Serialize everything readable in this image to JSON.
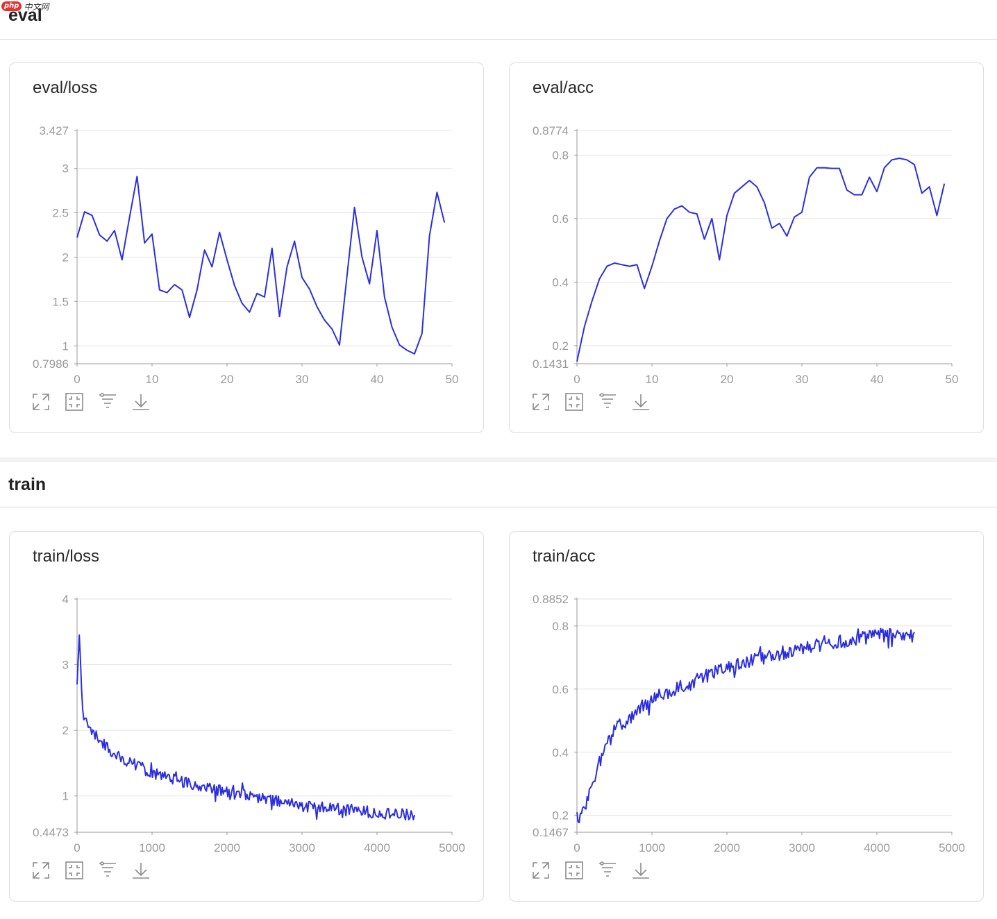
{
  "watermark": {
    "logo": "php",
    "text": "中文网"
  },
  "sections": [
    {
      "title": "eval"
    },
    {
      "title": "train"
    }
  ],
  "toolbar_icons": [
    "expand-icon",
    "fit-screen-icon",
    "filter-icon",
    "download-icon"
  ],
  "colors": {
    "line": "#2b2ee0",
    "grid": "#e3e3e3",
    "axis": "#999999",
    "tick_text": "#999999"
  },
  "charts": [
    {
      "id": "eval-loss",
      "title": "eval/loss",
      "chart_data": {
        "type": "line",
        "x": [
          0,
          1,
          2,
          3,
          4,
          5,
          6,
          7,
          8,
          9,
          10,
          11,
          12,
          13,
          14,
          15,
          16,
          17,
          18,
          19,
          20,
          21,
          22,
          23,
          24,
          25,
          26,
          27,
          28,
          29,
          30,
          31,
          32,
          33,
          34,
          35,
          36,
          37,
          38,
          39,
          40,
          41,
          42,
          43,
          44,
          45,
          46,
          47,
          48,
          49
        ],
        "series": [
          {
            "values": [
              2.22,
              2.51,
              2.47,
              2.25,
              2.18,
              2.3,
              1.97,
              2.45,
              2.91,
              2.16,
              2.26,
              1.63,
              1.6,
              1.69,
              1.63,
              1.32,
              1.63,
              2.08,
              1.89,
              2.28,
              1.97,
              1.68,
              1.48,
              1.38,
              1.59,
              1.55,
              2.1,
              1.33,
              1.89,
              2.18,
              1.77,
              1.64,
              1.44,
              1.29,
              1.19,
              1.01,
              1.79,
              2.56,
              2.0,
              1.7,
              2.3,
              1.55,
              1.21,
              1.01,
              0.95,
              0.91,
              1.14,
              2.24,
              2.73,
              2.39
            ]
          }
        ],
        "ylim": [
          0.7986,
          3.427
        ],
        "yticks": [
          0.7986,
          1,
          1.5,
          2,
          2.5,
          3,
          3.427
        ],
        "xlim": [
          0,
          50
        ],
        "xticks": [
          0,
          10,
          20,
          30,
          40,
          50
        ],
        "grid": true
      }
    },
    {
      "id": "eval-acc",
      "title": "eval/acc",
      "chart_data": {
        "type": "line",
        "x": [
          0,
          1,
          2,
          3,
          4,
          5,
          6,
          7,
          8,
          9,
          10,
          11,
          12,
          13,
          14,
          15,
          16,
          17,
          18,
          19,
          20,
          21,
          22,
          23,
          24,
          25,
          26,
          27,
          28,
          29,
          30,
          31,
          32,
          33,
          34,
          35,
          36,
          37,
          38,
          39,
          40,
          41,
          42,
          43,
          44,
          45,
          46,
          47,
          48,
          49
        ],
        "series": [
          {
            "values": [
              0.15,
              0.26,
              0.34,
              0.41,
              0.45,
              0.46,
              0.455,
              0.45,
              0.455,
              0.38,
              0.45,
              0.53,
              0.6,
              0.63,
              0.64,
              0.62,
              0.615,
              0.535,
              0.6,
              0.47,
              0.61,
              0.68,
              0.7,
              0.72,
              0.7,
              0.65,
              0.57,
              0.585,
              0.545,
              0.605,
              0.62,
              0.73,
              0.76,
              0.76,
              0.758,
              0.758,
              0.69,
              0.675,
              0.675,
              0.73,
              0.685,
              0.76,
              0.785,
              0.79,
              0.785,
              0.77,
              0.68,
              0.7,
              0.61,
              0.71
            ]
          }
        ],
        "ylim": [
          0.1431,
          0.8774
        ],
        "yticks": [
          0.1431,
          0.2,
          0.4,
          0.6,
          0.8,
          0.8774
        ],
        "xlim": [
          0,
          50
        ],
        "xticks": [
          0,
          10,
          20,
          30,
          40,
          50
        ],
        "grid": true
      }
    },
    {
      "id": "train-loss",
      "title": "train/loss",
      "chart_data": {
        "type": "line",
        "x_start": 0,
        "x_end": 4500,
        "x_step": 15,
        "trend": {
          "model": "value = base + amp * exp(-x / tau)",
          "points": [
            [
              0,
              2.7
            ],
            [
              30,
              3.45
            ],
            [
              80,
              2.15
            ],
            [
              500,
              1.62
            ],
            [
              1000,
              1.35
            ],
            [
              2000,
              1.05
            ],
            [
              3000,
              0.85
            ],
            [
              4500,
              0.7
            ]
          ]
        },
        "noise_amplitude": 0.09,
        "ylim": [
          0.4473,
          4.0
        ],
        "yticks": [
          0.4473,
          1,
          2,
          3,
          4
        ],
        "xlim": [
          0,
          5000
        ],
        "xticks": [
          0,
          1000,
          2000,
          3000,
          4000,
          5000
        ],
        "grid": true
      }
    },
    {
      "id": "train-acc",
      "title": "train/acc",
      "chart_data": {
        "type": "line",
        "x_start": 0,
        "x_end": 4500,
        "x_step": 15,
        "trend": {
          "points": [
            [
              0,
              0.21
            ],
            [
              20,
              0.17
            ],
            [
              300,
              0.37
            ],
            [
              500,
              0.47
            ],
            [
              1000,
              0.57
            ],
            [
              1500,
              0.62
            ],
            [
              2000,
              0.67
            ],
            [
              2500,
              0.7
            ],
            [
              3000,
              0.73
            ],
            [
              3500,
              0.75
            ],
            [
              4000,
              0.77
            ],
            [
              4500,
              0.77
            ]
          ]
        },
        "noise_amplitude": 0.022,
        "ylim": [
          0.1467,
          0.8852
        ],
        "yticks": [
          0.1467,
          0.2,
          0.4,
          0.6,
          0.8,
          0.8852
        ],
        "xlim": [
          0,
          5000
        ],
        "xticks": [
          0,
          1000,
          2000,
          3000,
          4000,
          5000
        ],
        "grid": true
      }
    }
  ]
}
